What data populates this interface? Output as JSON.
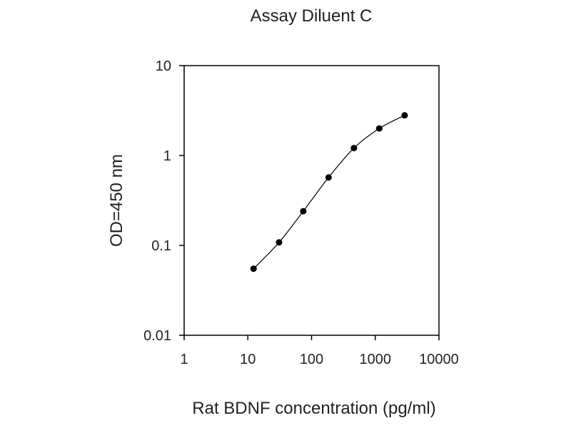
{
  "chart_data": {
    "type": "line",
    "title": "Assay Diluent C",
    "xlabel": "Rat BDNF concentration (pg/ml)",
    "ylabel": "OD=450 nm",
    "x_scale": "log",
    "y_scale": "log",
    "xlim": [
      1,
      10000
    ],
    "ylim": [
      0.01,
      10
    ],
    "x_ticks": [
      "1",
      "10",
      "100",
      "1000",
      "10000"
    ],
    "y_ticks": [
      "10",
      "1",
      "0.1",
      "0.01"
    ],
    "grid": false,
    "legend": "none",
    "series": [
      {
        "x": [
          12.3,
          30.9,
          74.1,
          185,
          463,
          1157,
          2893
        ],
        "y": [
          0.055,
          0.108,
          0.24,
          0.57,
          1.21,
          2.0,
          2.8
        ]
      }
    ]
  }
}
